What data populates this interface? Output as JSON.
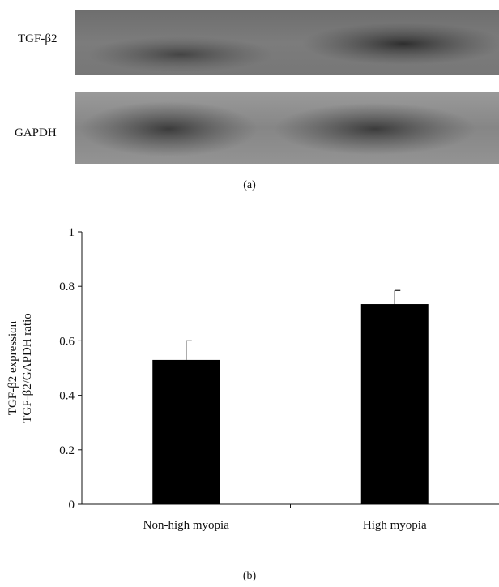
{
  "panel_a": {
    "caption": "(a)",
    "blots": [
      {
        "label": "TGF-β2"
      },
      {
        "label": "GAPDH"
      }
    ]
  },
  "panel_b": {
    "caption": "(b)"
  },
  "chart_data": {
    "type": "bar",
    "categories": [
      "Non-high myopia",
      "High myopia"
    ],
    "values": [
      0.53,
      0.735
    ],
    "error_upper": [
      0.07,
      0.05
    ],
    "ylabel_lines": [
      "TGF-β2 expression",
      "TGF-β2/GAPDH ratio"
    ],
    "ylim": [
      0,
      1
    ],
    "yticks": [
      0,
      0.2,
      0.4,
      0.6,
      0.8,
      1
    ],
    "ytick_labels": [
      "0",
      "0.2",
      "0.4",
      "0.6",
      "0.8",
      "1"
    ],
    "grid": false,
    "bar_color": "#000000"
  }
}
